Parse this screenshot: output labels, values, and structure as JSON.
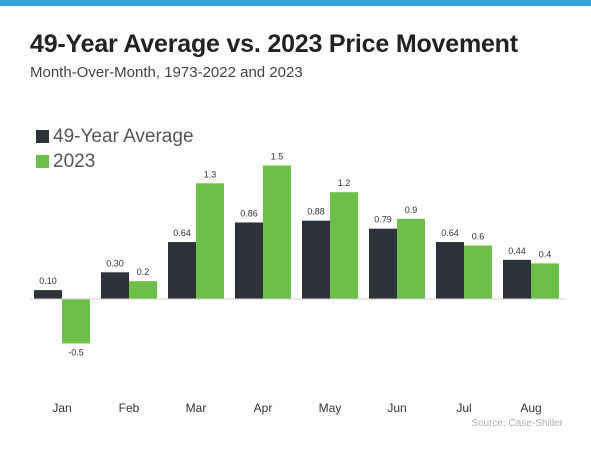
{
  "title": "49-Year Average vs. 2023 Price Movement",
  "subtitle": "Month-Over-Month, 1973-2022 and 2023",
  "source": "Source: Case-Shiller",
  "legend": [
    {
      "label": "49-Year Average",
      "color": "#2d3238"
    },
    {
      "label": "2023",
      "color": "#6cc04a"
    }
  ],
  "chart_data": {
    "type": "bar",
    "categories": [
      "Jan",
      "Feb",
      "Mar",
      "Apr",
      "May",
      "Jun",
      "Jul",
      "Aug"
    ],
    "series": [
      {
        "name": "49-Year Average",
        "values": [
          0.1,
          0.3,
          0.64,
          0.86,
          0.88,
          0.79,
          0.64,
          0.44
        ],
        "labels": [
          "0.10",
          "0.30",
          "0.64",
          "0.86",
          "0.88",
          "0.79",
          "0.64",
          "0.44"
        ],
        "color": "#2d3238"
      },
      {
        "name": "2023",
        "values": [
          -0.5,
          0.2,
          1.3,
          1.5,
          1.2,
          0.9,
          0.6,
          0.4
        ],
        "labels": [
          "-0.5",
          "0.2",
          "1.3",
          "1.5",
          "1.2",
          "0.9",
          "0.6",
          "0.4"
        ],
        "color": "#6cc04a"
      }
    ],
    "title": "49-Year Average vs. 2023 Price Movement",
    "xlabel": "",
    "ylabel": "",
    "ylim": [
      -0.55,
      1.6
    ],
    "grid": false,
    "legend_position": "top-left"
  }
}
